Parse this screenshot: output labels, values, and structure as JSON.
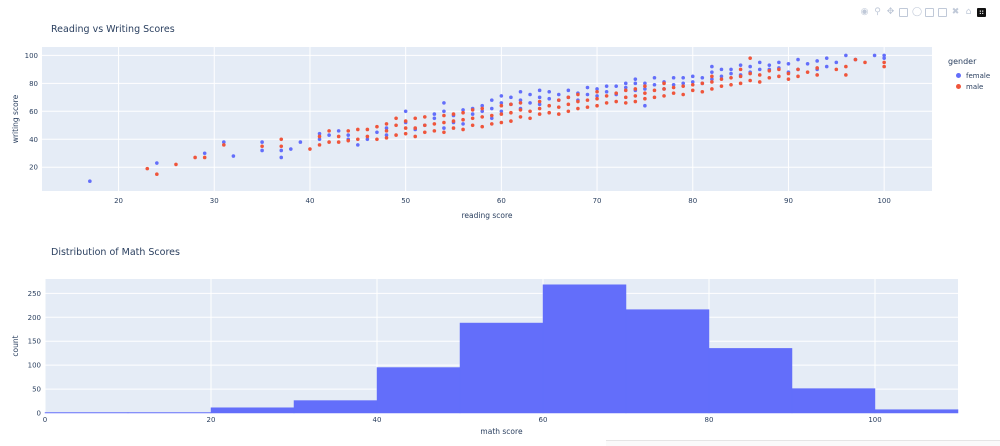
{
  "modebar": {
    "icons": [
      "camera-icon",
      "zoom-icon",
      "pan-icon",
      "box-select-icon",
      "lasso-icon",
      "zoom-in-icon",
      "zoom-out-icon",
      "autoscale-icon",
      "home-icon",
      "plotly-logo-icon"
    ]
  },
  "colors": {
    "female": "#636efa",
    "male": "#EF553B",
    "plot_bg": "#e5ecf6",
    "grid": "#ffffff",
    "text": "#2a3f5f",
    "bar": "#636efa"
  },
  "chart_data": [
    {
      "type": "scatter",
      "title": "Reading vs Writing Scores",
      "xlabel": "reading score",
      "ylabel": "writing score",
      "xlim": [
        12,
        105
      ],
      "ylim": [
        3,
        106
      ],
      "xticks": [
        20,
        30,
        40,
        50,
        60,
        70,
        80,
        90,
        100
      ],
      "yticks": [
        20,
        40,
        60,
        80,
        100
      ],
      "legend_title": "gender",
      "legend_position": "right",
      "series": [
        {
          "name": "female",
          "points": [
            [
              17,
              10
            ],
            [
              24,
              23
            ],
            [
              29,
              30
            ],
            [
              31,
              38
            ],
            [
              32,
              28
            ],
            [
              35,
              32
            ],
            [
              35,
              38
            ],
            [
              37,
              27
            ],
            [
              37,
              32
            ],
            [
              38,
              33
            ],
            [
              39,
              38
            ],
            [
              41,
              40
            ],
            [
              41,
              44
            ],
            [
              42,
              43
            ],
            [
              43,
              46
            ],
            [
              44,
              40
            ],
            [
              44,
              43
            ],
            [
              45,
              36
            ],
            [
              46,
              40
            ],
            [
              47,
              45
            ],
            [
              48,
              43
            ],
            [
              48,
              48
            ],
            [
              50,
              52
            ],
            [
              50,
              60
            ],
            [
              51,
              47
            ],
            [
              52,
              50
            ],
            [
              53,
              55
            ],
            [
              53,
              58
            ],
            [
              54,
              48
            ],
            [
              54,
              60
            ],
            [
              54,
              66
            ],
            [
              55,
              52
            ],
            [
              55,
              57
            ],
            [
              56,
              51
            ],
            [
              56,
              61
            ],
            [
              57,
              58
            ],
            [
              57,
              62
            ],
            [
              58,
              60
            ],
            [
              58,
              64
            ],
            [
              59,
              55
            ],
            [
              59,
              62
            ],
            [
              59,
              68
            ],
            [
              60,
              60
            ],
            [
              60,
              66
            ],
            [
              60,
              71
            ],
            [
              61,
              65
            ],
            [
              61,
              70
            ],
            [
              62,
              62
            ],
            [
              62,
              68
            ],
            [
              62,
              74
            ],
            [
              63,
              66
            ],
            [
              63,
              72
            ],
            [
              64,
              65
            ],
            [
              64,
              70
            ],
            [
              64,
              75
            ],
            [
              65,
              69
            ],
            [
              65,
              74
            ],
            [
              66,
              68
            ],
            [
              66,
              72
            ],
            [
              67,
              70
            ],
            [
              67,
              75
            ],
            [
              68,
              68
            ],
            [
              68,
              73
            ],
            [
              69,
              72
            ],
            [
              69,
              77
            ],
            [
              70,
              71
            ],
            [
              70,
              76
            ],
            [
              71,
              74
            ],
            [
              71,
              78
            ],
            [
              72,
              72
            ],
            [
              72,
              78
            ],
            [
              73,
              77
            ],
            [
              73,
              80
            ],
            [
              74,
              75
            ],
            [
              74,
              80
            ],
            [
              74,
              83
            ],
            [
              75,
              64
            ],
            [
              75,
              76
            ],
            [
              75,
              80
            ],
            [
              76,
              79
            ],
            [
              76,
              84
            ],
            [
              77,
              76
            ],
            [
              77,
              81
            ],
            [
              78,
              79
            ],
            [
              78,
              84
            ],
            [
              79,
              80
            ],
            [
              79,
              84
            ],
            [
              80,
              81
            ],
            [
              80,
              85
            ],
            [
              81,
              80
            ],
            [
              81,
              84
            ],
            [
              82,
              83
            ],
            [
              82,
              88
            ],
            [
              82,
              92
            ],
            [
              83,
              85
            ],
            [
              83,
              90
            ],
            [
              84,
              87
            ],
            [
              84,
              90
            ],
            [
              85,
              86
            ],
            [
              85,
              93
            ],
            [
              86,
              88
            ],
            [
              86,
              92
            ],
            [
              87,
              90
            ],
            [
              87,
              95
            ],
            [
              88,
              90
            ],
            [
              88,
              93
            ],
            [
              89,
              91
            ],
            [
              89,
              95
            ],
            [
              90,
              88
            ],
            [
              90,
              94
            ],
            [
              91,
              90
            ],
            [
              91,
              97
            ],
            [
              92,
              94
            ],
            [
              93,
              90
            ],
            [
              93,
              96
            ],
            [
              94,
              92
            ],
            [
              94,
              98
            ],
            [
              95,
              95
            ],
            [
              96,
              100
            ],
            [
              97,
              97
            ],
            [
              99,
              100
            ],
            [
              100,
              100
            ],
            [
              100,
              98
            ]
          ]
        },
        {
          "name": "male",
          "points": [
            [
              23,
              19
            ],
            [
              24,
              15
            ],
            [
              26,
              22
            ],
            [
              28,
              27
            ],
            [
              29,
              27
            ],
            [
              31,
              36
            ],
            [
              35,
              35
            ],
            [
              37,
              35
            ],
            [
              37,
              40
            ],
            [
              40,
              33
            ],
            [
              41,
              36
            ],
            [
              41,
              42
            ],
            [
              42,
              38
            ],
            [
              42,
              46
            ],
            [
              43,
              38
            ],
            [
              43,
              42
            ],
            [
              44,
              39
            ],
            [
              44,
              46
            ],
            [
              45,
              40
            ],
            [
              45,
              47
            ],
            [
              46,
              42
            ],
            [
              46,
              47
            ],
            [
              47,
              40
            ],
            [
              47,
              49
            ],
            [
              48,
              41
            ],
            [
              48,
              46
            ],
            [
              48,
              51
            ],
            [
              49,
              43
            ],
            [
              49,
              50
            ],
            [
              49,
              55
            ],
            [
              50,
              44
            ],
            [
              50,
              48
            ],
            [
              50,
              53
            ],
            [
              51,
              42
            ],
            [
              51,
              48
            ],
            [
              51,
              55
            ],
            [
              52,
              45
            ],
            [
              52,
              50
            ],
            [
              52,
              56
            ],
            [
              53,
              46
            ],
            [
              53,
              51
            ],
            [
              54,
              45
            ],
            [
              54,
              52
            ],
            [
              54,
              57
            ],
            [
              55,
              48
            ],
            [
              55,
              53
            ],
            [
              55,
              58
            ],
            [
              56,
              47
            ],
            [
              56,
              54
            ],
            [
              56,
              59
            ],
            [
              57,
              50
            ],
            [
              57,
              55
            ],
            [
              57,
              61
            ],
            [
              58,
              49
            ],
            [
              58,
              56
            ],
            [
              58,
              62
            ],
            [
              59,
              51
            ],
            [
              59,
              57
            ],
            [
              60,
              52
            ],
            [
              60,
              58
            ],
            [
              60,
              64
            ],
            [
              61,
              53
            ],
            [
              61,
              59
            ],
            [
              61,
              65
            ],
            [
              62,
              56
            ],
            [
              62,
              61
            ],
            [
              62,
              66
            ],
            [
              63,
              55
            ],
            [
              63,
              60
            ],
            [
              64,
              58
            ],
            [
              64,
              62
            ],
            [
              64,
              67
            ],
            [
              65,
              59
            ],
            [
              65,
              64
            ],
            [
              66,
              58
            ],
            [
              66,
              63
            ],
            [
              66,
              68
            ],
            [
              67,
              60
            ],
            [
              67,
              65
            ],
            [
              67,
              70
            ],
            [
              68,
              62
            ],
            [
              68,
              67
            ],
            [
              68,
              72
            ],
            [
              69,
              63
            ],
            [
              69,
              68
            ],
            [
              70,
              64
            ],
            [
              70,
              69
            ],
            [
              70,
              74
            ],
            [
              71,
              66
            ],
            [
              71,
              71
            ],
            [
              72,
              67
            ],
            [
              72,
              73
            ],
            [
              73,
              66
            ],
            [
              73,
              70
            ],
            [
              73,
              75
            ],
            [
              74,
              67
            ],
            [
              74,
              71
            ],
            [
              74,
              76
            ],
            [
              75,
              69
            ],
            [
              75,
              73
            ],
            [
              75,
              78
            ],
            [
              76,
              70
            ],
            [
              76,
              75
            ],
            [
              77,
              71
            ],
            [
              77,
              76
            ],
            [
              77,
              80
            ],
            [
              78,
              73
            ],
            [
              78,
              77
            ],
            [
              79,
              72
            ],
            [
              79,
              78
            ],
            [
              80,
              75
            ],
            [
              80,
              79
            ],
            [
              81,
              74
            ],
            [
              81,
              80
            ],
            [
              82,
              76
            ],
            [
              82,
              81
            ],
            [
              82,
              85
            ],
            [
              83,
              78
            ],
            [
              83,
              83
            ],
            [
              84,
              79
            ],
            [
              84,
              84
            ],
            [
              85,
              80
            ],
            [
              85,
              85
            ],
            [
              85,
              90
            ],
            [
              86,
              82
            ],
            [
              86,
              87
            ],
            [
              86,
              98
            ],
            [
              87,
              81
            ],
            [
              87,
              86
            ],
            [
              88,
              84
            ],
            [
              88,
              89
            ],
            [
              89,
              85
            ],
            [
              89,
              90
            ],
            [
              90,
              83
            ],
            [
              90,
              87
            ],
            [
              91,
              85
            ],
            [
              91,
              90
            ],
            [
              92,
              88
            ],
            [
              93,
              86
            ],
            [
              93,
              91
            ],
            [
              95,
              90
            ],
            [
              96,
              86
            ],
            [
              96,
              92
            ],
            [
              97,
              97
            ],
            [
              98,
              95
            ],
            [
              100,
              95
            ],
            [
              100,
              92
            ]
          ]
        }
      ]
    },
    {
      "type": "bar",
      "subtype": "histogram",
      "title": "Distribution of Math Scores",
      "xlabel": "math score",
      "ylabel": "count",
      "xlim": [
        0,
        110
      ],
      "ylim": [
        0,
        280
      ],
      "xticks": [
        0,
        20,
        40,
        60,
        80,
        100
      ],
      "yticks": [
        0,
        50,
        100,
        150,
        200,
        250
      ],
      "bins": [
        {
          "x0": 0,
          "x1": 10,
          "count": 1
        },
        {
          "x0": 10,
          "x1": 20,
          "count": 1
        },
        {
          "x0": 20,
          "x1": 30,
          "count": 11
        },
        {
          "x0": 30,
          "x1": 40,
          "count": 26
        },
        {
          "x0": 40,
          "x1": 50,
          "count": 95
        },
        {
          "x0": 50,
          "x1": 60,
          "count": 188
        },
        {
          "x0": 60,
          "x1": 70,
          "count": 268
        },
        {
          "x0": 70,
          "x1": 80,
          "count": 216
        },
        {
          "x0": 80,
          "x1": 90,
          "count": 135
        },
        {
          "x0": 90,
          "x1": 100,
          "count": 51
        },
        {
          "x0": 100,
          "x1": 110,
          "count": 7
        }
      ]
    }
  ]
}
